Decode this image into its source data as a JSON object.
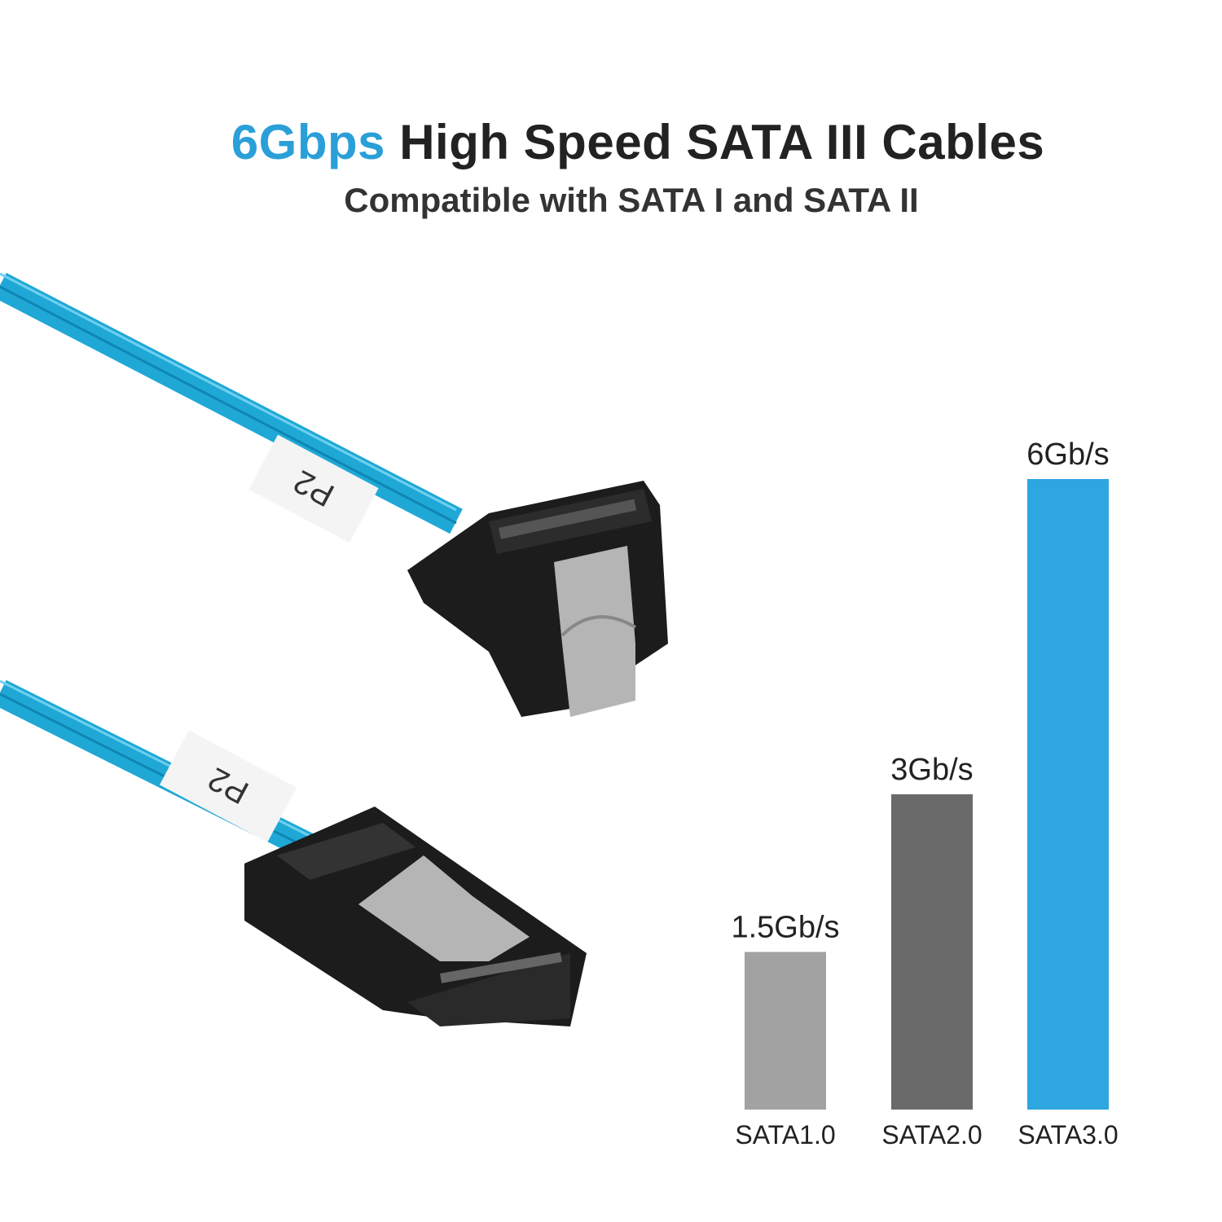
{
  "headline": {
    "accent": "6Gbps",
    "rest": "High Speed SATA III Cables"
  },
  "subtitle": "Compatible with SATA I and SATA II",
  "cable_labels": [
    "P2",
    "P2"
  ],
  "colors": {
    "accent": "#2a9fd8",
    "cable": "#1fa8d6",
    "connector": "#1c1c1c",
    "clip": "#a9a9a9"
  },
  "chart_data": {
    "type": "bar",
    "categories": [
      "SATA1.0",
      "SATA2.0",
      "SATA3.0"
    ],
    "values": [
      1.5,
      3,
      6
    ],
    "data_labels": [
      "1.5Gb/s",
      "3Gb/s",
      "6Gb/s"
    ],
    "colors": [
      "#a2a2a2",
      "#6a6a6a",
      "#2ea6e0"
    ],
    "ylim": [
      0,
      6
    ],
    "grid": false
  }
}
